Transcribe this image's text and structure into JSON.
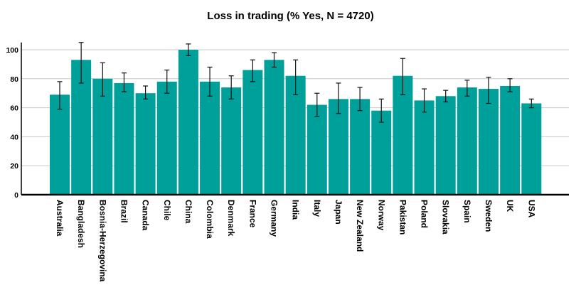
{
  "chart_data": {
    "type": "bar",
    "title": "Loss in trading (% Yes, N = 4720)",
    "xlabel": "",
    "ylabel": "",
    "ylim": [
      0,
      105
    ],
    "yticks": [
      0,
      20,
      40,
      60,
      80,
      100
    ],
    "grid": true,
    "bar_color": "#00a09a",
    "categories": [
      "Australia",
      "Bangladesh",
      "Bosnia-Herzegovina",
      "Brazil",
      "Canada",
      "Chile",
      "China",
      "Colombia",
      "Denmark",
      "France",
      "Germany",
      "India",
      "Italy",
      "Japan",
      "New Zealand",
      "Norway",
      "Pakistan",
      "Poland",
      "Slovakia",
      "Spain",
      "Sweden",
      "UK",
      "USA"
    ],
    "values": [
      69,
      93,
      80,
      77,
      70,
      78,
      100,
      78,
      74,
      86,
      93,
      82,
      62,
      66,
      66,
      58,
      82,
      65,
      68,
      74,
      73,
      75,
      63
    ],
    "error_low": [
      59,
      77,
      68,
      71,
      66,
      70,
      96,
      68,
      66,
      78,
      88,
      69,
      54,
      56,
      58,
      50,
      69,
      57,
      64,
      68,
      63,
      71,
      60
    ],
    "error_high": [
      78,
      105,
      91,
      84,
      75,
      86,
      104,
      88,
      82,
      93,
      98,
      93,
      70,
      77,
      74,
      66,
      94,
      73,
      72,
      79,
      81,
      80,
      66
    ]
  }
}
